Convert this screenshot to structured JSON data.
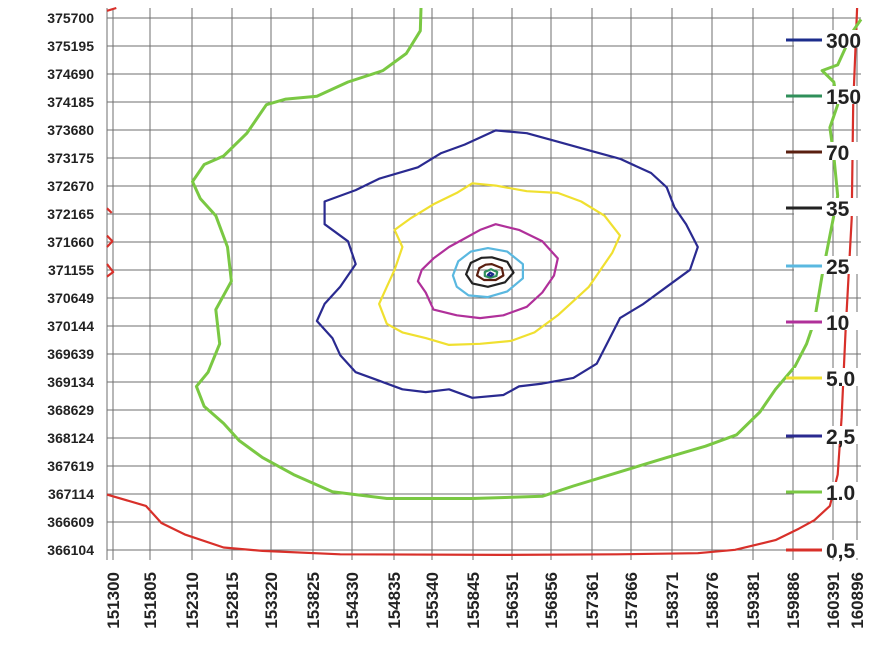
{
  "chart_data": {
    "type": "line",
    "title": "",
    "xlabel": "",
    "ylabel": "",
    "grid": true,
    "legend_position": "right",
    "xlim": [
      151300,
      161000
    ],
    "ylim": [
      366000,
      375700
    ],
    "x_tick_labels": [
      "151300",
      "151805",
      "152310",
      "152815",
      "153320",
      "153825",
      "154330",
      "154835",
      "155340",
      "155845",
      "156351",
      "156856",
      "157361",
      "157866",
      "158371",
      "158876",
      "159381",
      "159886",
      "160391",
      "160896"
    ],
    "y_tick_labels": [
      "375700",
      "375195",
      "374690",
      "374185",
      "373680",
      "373175",
      "372670",
      "372165",
      "371660",
      "371155",
      "370649",
      "370144",
      "369639",
      "369134",
      "368629",
      "368124",
      "367619",
      "367114",
      "366609",
      "366104"
    ],
    "legend": [
      {
        "label": "300",
        "color": "#1c2d8c"
      },
      {
        "label": "150",
        "color": "#2f8f5a"
      },
      {
        "label": "70",
        "color": "#5a1f10"
      },
      {
        "label": "35",
        "color": "#222222"
      },
      {
        "label": "25",
        "color": "#5ab8e0"
      },
      {
        "label": "10",
        "color": "#b0309a"
      },
      {
        "label": "5.0",
        "color": "#f0e030"
      },
      {
        "label": "2,5",
        "color": "#2a2a90"
      },
      {
        "label": "1.0",
        "color": "#7ac843"
      },
      {
        "label": "0,5",
        "color": "#d8302a"
      }
    ],
    "series": [
      {
        "level": "0.5",
        "color": "#d8302a",
        "closed": false,
        "points": [
          [
            151300,
            367150
          ],
          [
            151800,
            366950
          ],
          [
            152000,
            366650
          ],
          [
            152300,
            366450
          ],
          [
            152800,
            366220
          ],
          [
            153300,
            366160
          ],
          [
            154300,
            366100
          ],
          [
            156350,
            366090
          ],
          [
            157860,
            366100
          ],
          [
            158900,
            366120
          ],
          [
            159380,
            366180
          ],
          [
            159900,
            366350
          ],
          [
            160200,
            366550
          ],
          [
            160400,
            366700
          ],
          [
            160600,
            366950
          ],
          [
            160700,
            367500
          ],
          [
            160750,
            368500
          ],
          [
            160800,
            370000
          ],
          [
            160880,
            372000
          ],
          [
            160900,
            374000
          ],
          [
            160950,
            375700
          ]
        ]
      },
      {
        "level": "0.5",
        "color": "#d8302a",
        "closed": false,
        "points": [
          [
            151300,
            375650
          ],
          [
            151420,
            375700
          ]
        ]
      },
      {
        "level": "0.5",
        "color": "#d8302a",
        "closed": false,
        "points": [
          [
            151300,
            372180
          ],
          [
            151360,
            372100
          ]
        ]
      },
      {
        "level": "0.5",
        "color": "#d8302a",
        "closed": false,
        "points": [
          [
            151300,
            371700
          ],
          [
            151370,
            371600
          ],
          [
            151300,
            371500
          ]
        ]
      },
      {
        "level": "0.5",
        "color": "#d8302a",
        "closed": false,
        "points": [
          [
            151300,
            371200
          ],
          [
            151380,
            371060
          ],
          [
            151300,
            370980
          ]
        ]
      },
      {
        "level": "1.0",
        "color": "#7ac843",
        "closed": false,
        "points": [
          [
            155340,
            375700
          ],
          [
            155330,
            375300
          ],
          [
            155150,
            374900
          ],
          [
            154850,
            374600
          ],
          [
            154400,
            374400
          ],
          [
            154000,
            374150
          ],
          [
            153600,
            374100
          ],
          [
            153350,
            374000
          ],
          [
            153100,
            373500
          ],
          [
            152800,
            373100
          ],
          [
            152550,
            372950
          ],
          [
            152400,
            372650
          ],
          [
            152500,
            372350
          ],
          [
            152700,
            372050
          ],
          [
            152850,
            371500
          ],
          [
            152900,
            370900
          ],
          [
            152700,
            370400
          ],
          [
            152750,
            369800
          ],
          [
            152600,
            369300
          ],
          [
            152450,
            369050
          ],
          [
            152550,
            368700
          ],
          [
            152800,
            368400
          ],
          [
            153000,
            368100
          ],
          [
            153300,
            367800
          ],
          [
            153700,
            367500
          ],
          [
            154200,
            367200
          ],
          [
            154900,
            367080
          ],
          [
            156000,
            367080
          ],
          [
            156900,
            367120
          ],
          [
            157300,
            367300
          ],
          [
            157900,
            367550
          ],
          [
            158500,
            367800
          ],
          [
            159000,
            368000
          ],
          [
            159400,
            368200
          ],
          [
            159700,
            368600
          ],
          [
            159900,
            369000
          ],
          [
            160150,
            369400
          ],
          [
            160300,
            369800
          ],
          [
            160400,
            370200
          ],
          [
            160500,
            371000
          ],
          [
            160600,
            371700
          ],
          [
            160700,
            372400
          ],
          [
            160650,
            373100
          ],
          [
            160600,
            373600
          ],
          [
            160700,
            374000
          ],
          [
            160650,
            374400
          ],
          [
            160500,
            374600
          ],
          [
            160700,
            374700
          ],
          [
            160800,
            375000
          ],
          [
            160900,
            375300
          ],
          [
            161000,
            375500
          ]
        ]
      },
      {
        "level": "2.5",
        "color": "#2a2a90",
        "closed": true,
        "points": [
          [
            156300,
            373550
          ],
          [
            156700,
            373500
          ],
          [
            157100,
            373350
          ],
          [
            157500,
            373200
          ],
          [
            157900,
            373050
          ],
          [
            158300,
            372800
          ],
          [
            158500,
            372550
          ],
          [
            158600,
            372200
          ],
          [
            158750,
            371900
          ],
          [
            158900,
            371500
          ],
          [
            158800,
            371100
          ],
          [
            158500,
            370800
          ],
          [
            158200,
            370500
          ],
          [
            157900,
            370250
          ],
          [
            157750,
            369850
          ],
          [
            157600,
            369450
          ],
          [
            157300,
            369200
          ],
          [
            156900,
            369100
          ],
          [
            156600,
            369050
          ],
          [
            156400,
            368900
          ],
          [
            156000,
            368850
          ],
          [
            155700,
            369000
          ],
          [
            155400,
            368950
          ],
          [
            155100,
            369000
          ],
          [
            154800,
            369150
          ],
          [
            154500,
            369300
          ],
          [
            154300,
            369600
          ],
          [
            154200,
            369900
          ],
          [
            154000,
            370200
          ],
          [
            154100,
            370500
          ],
          [
            154300,
            370800
          ],
          [
            154500,
            371200
          ],
          [
            154400,
            371600
          ],
          [
            154100,
            371900
          ],
          [
            154100,
            372300
          ],
          [
            154500,
            372500
          ],
          [
            154800,
            372700
          ],
          [
            155300,
            372900
          ],
          [
            155600,
            373150
          ],
          [
            155900,
            373300
          ]
        ]
      },
      {
        "level": "5.0",
        "color": "#f0e030",
        "closed": true,
        "points": [
          [
            156000,
            372620
          ],
          [
            156300,
            372580
          ],
          [
            156700,
            372480
          ],
          [
            157100,
            372450
          ],
          [
            157400,
            372300
          ],
          [
            157700,
            372050
          ],
          [
            157900,
            371700
          ],
          [
            157800,
            371400
          ],
          [
            157650,
            371100
          ],
          [
            157500,
            370800
          ],
          [
            157300,
            370550
          ],
          [
            157100,
            370300
          ],
          [
            156800,
            370000
          ],
          [
            156500,
            369850
          ],
          [
            156100,
            369800
          ],
          [
            155700,
            369780
          ],
          [
            155400,
            369900
          ],
          [
            155100,
            370000
          ],
          [
            154900,
            370150
          ],
          [
            154800,
            370500
          ],
          [
            154900,
            370800
          ],
          [
            155000,
            371100
          ],
          [
            155100,
            371500
          ],
          [
            155000,
            371800
          ],
          [
            155200,
            372000
          ],
          [
            155500,
            372250
          ],
          [
            155800,
            372450
          ]
        ]
      },
      {
        "level": "10",
        "color": "#b0309a",
        "closed": true,
        "points": [
          [
            156300,
            371900
          ],
          [
            156600,
            371800
          ],
          [
            156900,
            371600
          ],
          [
            157100,
            371300
          ],
          [
            157050,
            371000
          ],
          [
            156900,
            370700
          ],
          [
            156700,
            370450
          ],
          [
            156400,
            370300
          ],
          [
            156100,
            370250
          ],
          [
            155800,
            370300
          ],
          [
            155500,
            370400
          ],
          [
            155400,
            370700
          ],
          [
            155300,
            370900
          ],
          [
            155350,
            371100
          ],
          [
            155500,
            371300
          ],
          [
            155700,
            371500
          ],
          [
            155900,
            371650
          ],
          [
            156100,
            371800
          ]
        ]
      },
      {
        "level": "25",
        "color": "#5ab8e0",
        "closed": true,
        "points": [
          [
            156200,
            371480
          ],
          [
            156450,
            371420
          ],
          [
            156650,
            371200
          ],
          [
            156650,
            370950
          ],
          [
            156450,
            370720
          ],
          [
            156200,
            370620
          ],
          [
            155950,
            370650
          ],
          [
            155800,
            370800
          ],
          [
            155750,
            371000
          ],
          [
            155820,
            371250
          ],
          [
            155980,
            371420
          ]
        ]
      },
      {
        "level": "35",
        "color": "#222222",
        "closed": true,
        "points": [
          [
            156250,
            371320
          ],
          [
            156450,
            371240
          ],
          [
            156530,
            371050
          ],
          [
            156420,
            370880
          ],
          [
            156200,
            370800
          ],
          [
            156000,
            370860
          ],
          [
            155920,
            371020
          ],
          [
            155980,
            371220
          ],
          [
            156120,
            371310
          ]
        ]
      },
      {
        "level": "70",
        "color": "#5a1f10",
        "closed": true,
        "points": [
          [
            156250,
            371200
          ],
          [
            156380,
            371130
          ],
          [
            156400,
            371000
          ],
          [
            156300,
            370920
          ],
          [
            156150,
            370920
          ],
          [
            156060,
            371000
          ],
          [
            156090,
            371130
          ],
          [
            156170,
            371190
          ]
        ]
      },
      {
        "level": "150",
        "color": "#2f8f5a",
        "closed": true,
        "points": [
          [
            156240,
            371110
          ],
          [
            156320,
            371060
          ],
          [
            156310,
            370990
          ],
          [
            156230,
            370960
          ],
          [
            156160,
            370990
          ],
          [
            156160,
            371060
          ]
        ]
      },
      {
        "level": "300",
        "color": "#1c2d8c",
        "closed": true,
        "points": [
          [
            156230,
            371050
          ],
          [
            156270,
            371020
          ],
          [
            156240,
            370990
          ],
          [
            156200,
            371010
          ]
        ]
      }
    ]
  }
}
